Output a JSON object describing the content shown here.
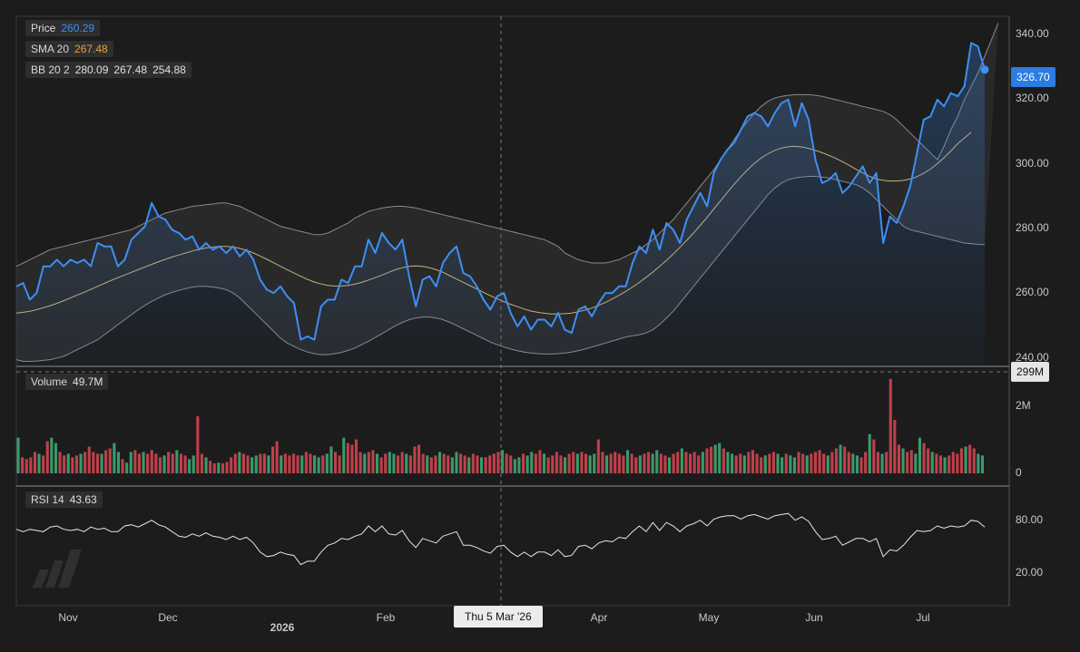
{
  "legends": {
    "price": {
      "label": "Price",
      "value": "260.29"
    },
    "sma": {
      "label": "SMA 20",
      "value": "267.48"
    },
    "bb": {
      "label": "BB 20 2",
      "upper": "280.09",
      "middle": "267.48",
      "lower": "254.88"
    },
    "volume": {
      "label": "Volume",
      "value": "49.7M"
    },
    "rsi": {
      "label": "RSI 14",
      "value": "43.63"
    }
  },
  "badges": {
    "last_price": "326.70",
    "volume_cursor": "299M",
    "date_cursor": "Thu 5 Mar '26"
  },
  "colors": {
    "background": "#1c1c1c",
    "price_line": "#3d8ff5",
    "sma_line": "#c8b27a",
    "bands": "#8a8a8a",
    "volume_up": "#3a9a6c",
    "volume_down": "#c0404a",
    "rsi_line": "#e6e6e6"
  },
  "chart_data": {
    "type": "line",
    "x_tick_labels": [
      "Nov",
      "Dec",
      "2026",
      "Feb",
      "Apr",
      "May",
      "Jun",
      "Jul"
    ],
    "price_axis": {
      "ticks": [
        "340.00",
        "320.00",
        "300.00",
        "280.00",
        "260.00",
        "240.00"
      ],
      "range": [
        238,
        343
      ]
    },
    "volume_axis": {
      "ticks": [
        "2M",
        "0"
      ],
      "range": [
        0,
        3000000
      ]
    },
    "rsi_axis": {
      "ticks": [
        "80.00",
        "20.00"
      ],
      "range": [
        0,
        100
      ]
    },
    "series": [
      {
        "name": "Price",
        "values": [
          262,
          263,
          258,
          260,
          268,
          268,
          270,
          268,
          270,
          269,
          270,
          268,
          275,
          274,
          274,
          268,
          270,
          276,
          278,
          280,
          287,
          283,
          282,
          279,
          278,
          276,
          277,
          273,
          275,
          273,
          274,
          272,
          274,
          271,
          273,
          270,
          264,
          261,
          260,
          262,
          259,
          257,
          246,
          247,
          246,
          256,
          258,
          258,
          264,
          263,
          268,
          268,
          276,
          272,
          278,
          275,
          273,
          276,
          265,
          256,
          264,
          265,
          262,
          269,
          272,
          274,
          266,
          265,
          262,
          258,
          255,
          259,
          260,
          254,
          250,
          253,
          249,
          252,
          252,
          250,
          254,
          249,
          248,
          255,
          256,
          253,
          257,
          260,
          260,
          262,
          262,
          269,
          274,
          272,
          279,
          273,
          281,
          279,
          275,
          282,
          286,
          290,
          286,
          296,
          300,
          303,
          305,
          309,
          313,
          314,
          313,
          310,
          314,
          317,
          318,
          310,
          317,
          312,
          300,
          293,
          294,
          296,
          290,
          292,
          295,
          298,
          293,
          296,
          275,
          283,
          281,
          286,
          292,
          302,
          312,
          313,
          318,
          316,
          320,
          319,
          322,
          335,
          334,
          327
        ]
      },
      {
        "name": "SMA 20",
        "values": [
          254,
          254.2,
          254.5,
          255,
          255.6,
          256.2,
          256.9,
          257.7,
          258.5,
          259.4,
          260.2,
          261.1,
          262,
          262.9,
          263.8,
          264.6,
          265.4,
          266.2,
          267,
          267.8,
          268.6,
          269.4,
          270.1,
          270.8,
          271.4,
          272,
          272.6,
          273.1,
          273.5,
          273.8,
          274,
          274,
          273.8,
          273.4,
          272.8,
          272,
          271.1,
          270.1,
          269.1,
          268,
          267,
          266,
          265,
          264.1,
          263.3,
          262.7,
          262.3,
          262.1,
          262.1,
          262.3,
          262.7,
          263.2,
          263.9,
          264.6,
          265.4,
          266.2,
          267,
          267.6,
          268,
          268.1,
          268,
          267.6,
          267,
          266.2,
          265.2,
          264.2,
          263.2,
          262.2,
          261.2,
          260.2,
          259.2,
          258.3,
          257.4,
          256.6,
          255.9,
          255.2,
          254.6,
          254.2,
          253.9,
          253.7,
          253.7,
          253.8,
          254,
          254.4,
          254.9,
          255.5,
          256.3,
          257.2,
          258.2,
          259.3,
          260.5,
          261.8,
          263.2,
          264.7,
          266.3,
          268,
          269.8,
          271.7,
          273.7,
          275.8,
          278,
          280.3,
          282.7,
          285.2,
          287.7,
          290.2,
          292.6,
          294.9,
          297,
          298.9,
          300.5,
          301.8,
          302.8,
          303.5,
          303.9,
          304,
          303.8,
          303.4,
          302.8,
          302.1,
          301.3,
          300.4,
          299.4,
          298.3,
          297.1,
          296,
          295,
          294.2,
          293.8,
          293.6,
          293.6,
          293.8,
          294.2,
          294.9,
          295.9,
          297.2,
          298.8,
          300.6,
          302.6,
          304.8,
          306.5,
          308.2
        ]
      },
      {
        "name": "BB upper",
        "values": [
          268,
          269,
          270,
          271,
          272,
          273,
          273.5,
          274,
          274.5,
          275,
          275.5,
          276,
          276.5,
          277,
          277.5,
          278,
          278.5,
          279,
          280,
          281,
          282,
          283,
          284,
          284.5,
          285,
          285.5,
          286,
          286.2,
          286.5,
          286.7,
          287,
          287,
          286.5,
          286,
          285,
          284,
          283,
          282,
          281,
          280,
          279.5,
          279,
          278.5,
          278,
          277.5,
          277.5,
          278,
          279,
          280,
          281,
          282.5,
          283.5,
          284.5,
          285,
          285.5,
          285.8,
          286,
          286,
          285.8,
          285.5,
          285,
          284.5,
          284,
          283.5,
          283,
          282.5,
          282,
          281.5,
          281,
          280.5,
          280,
          279.5,
          279,
          278.5,
          278,
          277.5,
          277,
          276.5,
          276,
          275,
          274,
          272,
          271,
          270,
          269.5,
          269,
          269,
          269,
          269.5,
          270,
          271,
          272,
          273,
          274.5,
          276,
          278,
          280,
          282,
          284.5,
          287,
          289.5,
          292,
          294.5,
          297,
          300,
          303,
          306,
          309,
          311.5,
          314,
          316,
          317.5,
          318.5,
          319,
          319.3,
          319.5,
          319.5,
          319.5,
          319.3,
          319,
          318.5,
          318,
          317.5,
          317,
          316.5,
          316,
          315.5,
          315,
          314.5,
          313.5,
          312,
          310,
          308,
          306,
          304,
          302,
          300,
          304,
          309,
          313,
          318,
          322,
          326,
          331,
          336,
          341
        ]
      },
      {
        "name": "BB lower",
        "values": [
          240,
          239.5,
          239.5,
          239.6,
          239.8,
          240,
          240.5,
          241,
          242,
          243,
          244,
          245,
          246,
          247.5,
          249,
          250.5,
          252,
          253.5,
          255,
          256.3,
          257.5,
          258.5,
          259.5,
          260.2,
          260.8,
          261.3,
          261.8,
          262,
          262,
          261.8,
          261.5,
          261,
          260,
          258.5,
          256.5,
          254.5,
          252.5,
          250.5,
          248.5,
          246.5,
          245,
          244,
          243,
          242.3,
          241.8,
          241.5,
          241.5,
          241.8,
          242.2,
          242.8,
          243.5,
          244.5,
          245.5,
          246.7,
          247.8,
          249,
          250.2,
          251.2,
          252,
          252.5,
          252.8,
          252.8,
          252.5,
          252,
          251.2,
          250.3,
          249.3,
          248.3,
          247.3,
          246.3,
          245.3,
          244.5,
          243.8,
          243.2,
          242.7,
          242.3,
          242,
          241.8,
          241.7,
          241.7,
          241.8,
          242,
          242.3,
          242.7,
          243.2,
          243.8,
          244.4,
          245,
          245.6,
          246.2,
          246.8,
          247.2,
          247.5,
          248,
          249,
          250.5,
          252.5,
          254.5,
          257,
          259.5,
          262,
          264.5,
          267,
          269.5,
          272,
          274.5,
          277,
          279.5,
          282,
          284.5,
          287,
          289.5,
          291.5,
          293,
          294,
          294.5,
          294.8,
          295,
          295,
          294.8,
          294.5,
          294,
          293.5,
          293,
          292.5,
          291.5,
          290,
          288,
          286,
          284,
          282,
          280,
          279,
          278.5,
          278,
          277.5,
          277,
          276.5,
          276,
          275.5,
          275,
          274.8,
          274.6,
          274.5
        ]
      },
      {
        "name": "RSI 14",
        "values": [
          64,
          62,
          64,
          63,
          62,
          66,
          67,
          64,
          63,
          64,
          62,
          66,
          64,
          65,
          62,
          62,
          67,
          68,
          66,
          69,
          72,
          68,
          66,
          62,
          58,
          57,
          60,
          58,
          61,
          58,
          57,
          55,
          58,
          55,
          57,
          52,
          44,
          40,
          41,
          44,
          42,
          41,
          33,
          36,
          36,
          44,
          50,
          52,
          56,
          55,
          58,
          60,
          67,
          62,
          67,
          60,
          59,
          63,
          54,
          48,
          56,
          54,
          52,
          58,
          60,
          62,
          50,
          50,
          48,
          45,
          43,
          49,
          50,
          44,
          40,
          44,
          40,
          44,
          44,
          41,
          46,
          40,
          41,
          49,
          50,
          47,
          52,
          54,
          53,
          57,
          56,
          62,
          67,
          62,
          70,
          63,
          70,
          67,
          62,
          67,
          69,
          72,
          67,
          73,
          75,
          76,
          76,
          73,
          76,
          77,
          75,
          73,
          76,
          77,
          78,
          72,
          75,
          71,
          62,
          55,
          56,
          58,
          50,
          53,
          56,
          56,
          53,
          56,
          40,
          46,
          45,
          50,
          57,
          63,
          62,
          63,
          67,
          65,
          67,
          66,
          67,
          72,
          71,
          66
        ]
      },
      {
        "name": "Volume",
        "values": [
          1.0,
          0.45,
          0.4,
          0.45,
          0.6,
          0.55,
          0.5,
          0.9,
          1.0,
          0.85,
          0.6,
          0.5,
          0.55,
          0.45,
          0.5,
          0.55,
          0.6,
          0.75,
          0.6,
          0.55,
          0.55,
          0.65,
          0.7,
          0.85,
          0.6,
          0.4,
          0.3,
          0.6,
          0.65,
          0.55,
          0.6,
          0.55,
          0.65,
          0.55,
          0.45,
          0.5,
          0.6,
          0.55,
          0.65,
          0.55,
          0.5,
          0.4,
          0.5,
          1.6,
          0.55,
          0.45,
          0.35,
          0.28,
          0.3,
          0.28,
          0.32,
          0.45,
          0.55,
          0.6,
          0.55,
          0.5,
          0.45,
          0.5,
          0.55,
          0.55,
          0.5,
          0.75,
          0.9,
          0.5,
          0.55,
          0.5,
          0.55,
          0.5,
          0.5,
          0.6,
          0.55,
          0.5,
          0.45,
          0.5,
          0.55,
          0.75,
          0.6,
          0.5,
          1.0,
          0.85,
          0.8,
          0.95,
          0.6,
          0.55,
          0.6,
          0.65,
          0.55,
          0.45,
          0.55,
          0.6,
          0.55,
          0.5,
          0.6,
          0.55,
          0.5,
          0.75,
          0.8,
          0.55,
          0.5,
          0.45,
          0.5,
          0.6,
          0.55,
          0.5,
          0.45,
          0.6,
          0.55,
          0.5,
          0.45,
          0.55,
          0.5,
          0.45,
          0.45,
          0.5,
          0.55,
          0.6,
          0.65,
          0.55,
          0.5,
          0.4,
          0.45,
          0.55,
          0.5,
          0.6,
          0.55,
          0.65,
          0.55,
          0.45,
          0.5,
          0.6,
          0.5,
          0.45,
          0.55,
          0.6,
          0.55,
          0.6,
          0.55,
          0.5,
          0.55,
          0.95,
          0.6,
          0.5,
          0.55,
          0.6,
          0.55,
          0.5,
          0.65,
          0.55,
          0.45,
          0.5,
          0.55,
          0.6,
          0.55,
          0.65,
          0.55,
          0.5,
          0.45,
          0.55,
          0.6,
          0.7,
          0.6,
          0.55,
          0.6,
          0.5,
          0.6,
          0.7,
          0.75,
          0.8,
          0.85,
          0.7,
          0.6,
          0.55,
          0.5,
          0.55,
          0.5,
          0.6,
          0.65,
          0.55,
          0.45,
          0.5,
          0.55,
          0.6,
          0.55,
          0.45,
          0.55,
          0.5,
          0.45,
          0.6,
          0.55,
          0.5,
          0.55,
          0.6,
          0.65,
          0.55,
          0.5,
          0.6,
          0.7,
          0.8,
          0.75,
          0.6,
          0.55,
          0.5,
          0.45,
          0.6,
          1.1,
          0.95,
          0.6,
          0.55,
          0.6,
          2.65,
          1.5,
          0.8,
          0.7,
          0.6,
          0.65,
          0.55,
          1.0,
          0.85,
          0.7,
          0.6,
          0.55,
          0.5,
          0.45,
          0.5,
          0.6,
          0.55,
          0.7,
          0.75,
          0.8,
          0.7,
          0.55,
          0.5
        ]
      }
    ]
  }
}
